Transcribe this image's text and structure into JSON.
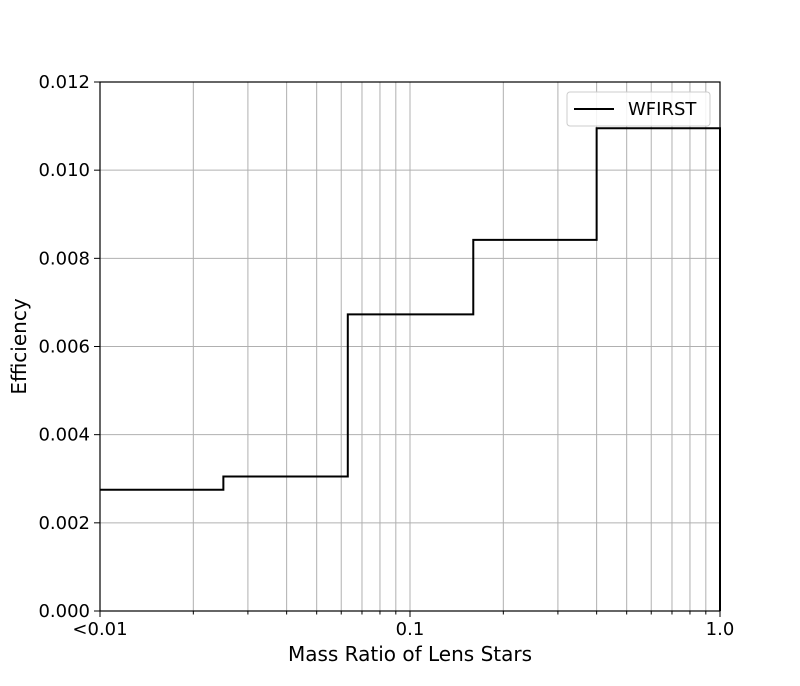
{
  "chart_data": {
    "type": "line",
    "step": true,
    "xscale": "log",
    "xlabel": "Mass Ratio of Lens Stars",
    "ylabel": "Efficiency",
    "xlim": [
      0.01,
      1.0
    ],
    "ylim": [
      0,
      0.012
    ],
    "grid": true,
    "legend_position": "top-right",
    "x_ticks": [
      {
        "value": 0.01,
        "label": "<0.01"
      },
      {
        "value": 0.1,
        "label": "0.1"
      },
      {
        "value": 1.0,
        "label": "1.0"
      }
    ],
    "y_ticks": [
      {
        "value": 0,
        "label": "0.000"
      },
      {
        "value": 0.002,
        "label": "0.002"
      },
      {
        "value": 0.004,
        "label": "0.004"
      },
      {
        "value": 0.006,
        "label": "0.006"
      },
      {
        "value": 0.008,
        "label": "0.008"
      },
      {
        "value": 0.01,
        "label": "0.010"
      },
      {
        "value": 0.012,
        "label": "0.012"
      }
    ],
    "series": [
      {
        "name": "WFIRST",
        "color": "#000000",
        "bin_edges": [
          0.01,
          0.025,
          0.063,
          0.16,
          0.4,
          1.0
        ],
        "values": [
          0.00275,
          0.00305,
          0.00673,
          0.00842,
          0.01095
        ]
      }
    ]
  }
}
